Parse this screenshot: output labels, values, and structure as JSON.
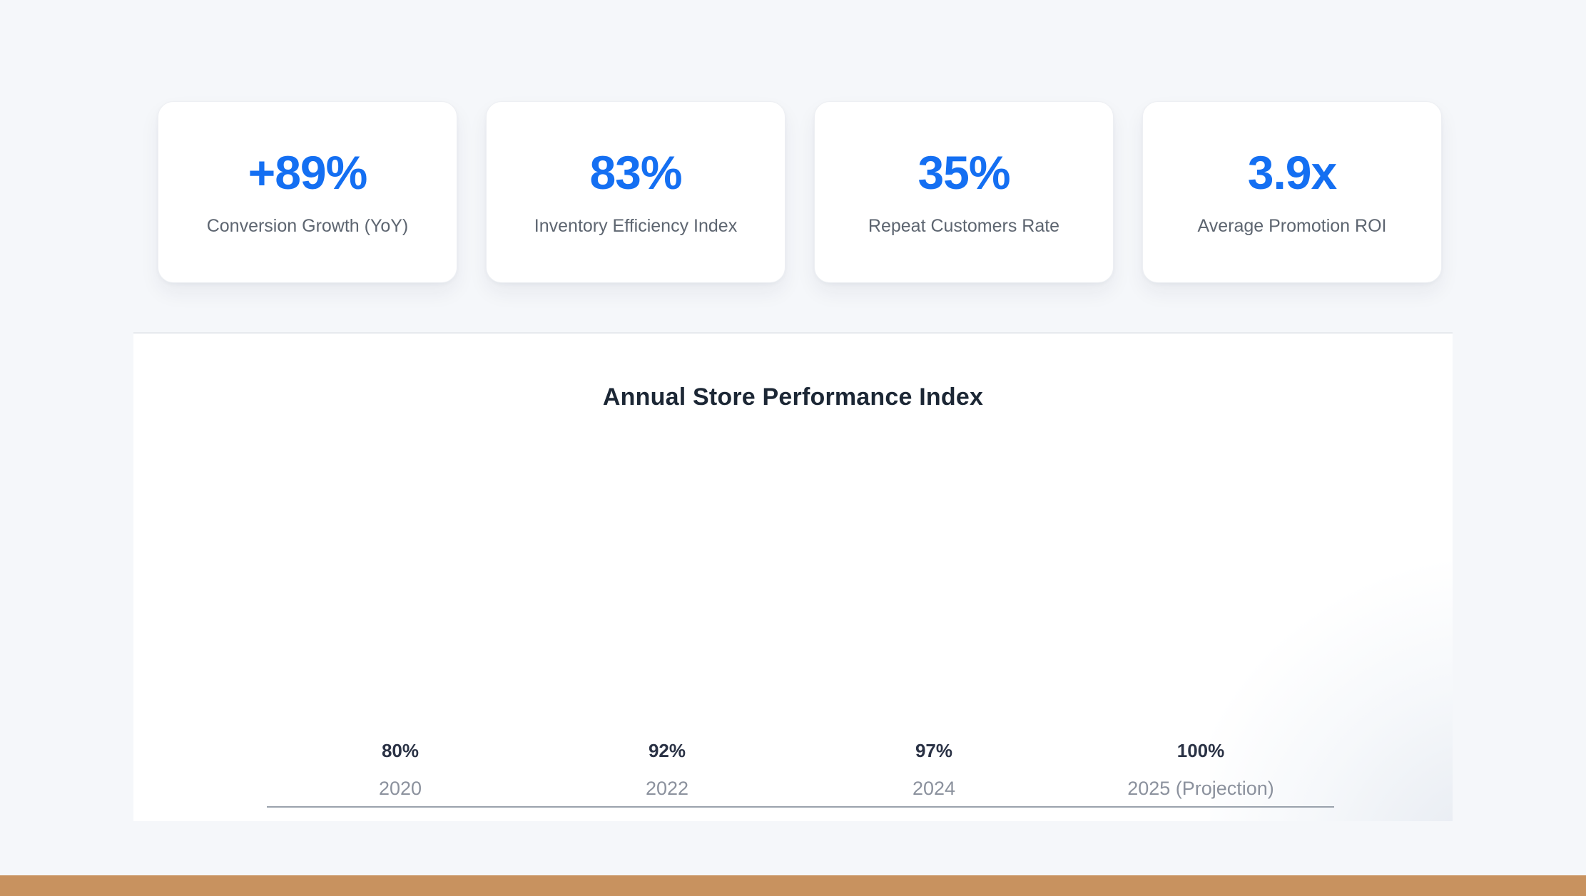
{
  "colors": {
    "page_background": "#f5f7fa",
    "accent_blue": "#146ff2",
    "title_navy": "#1c2735",
    "percent_label_navy": "#2a3245",
    "year_label_gray": "#8b919d",
    "axis_line_gray": "#9aa2ac",
    "bottom_bar_brown": "#c8925f"
  },
  "stats": {
    "cards": [
      {
        "value": "+89%",
        "label": "Conversion Growth (YoY)"
      },
      {
        "value": "83%",
        "label": "Inventory Efficiency Index"
      },
      {
        "value": "35%",
        "label": "Repeat Customers Rate"
      },
      {
        "value": "3.9x",
        "label": "Average Promotion ROI"
      }
    ]
  },
  "chart": {
    "title": "Annual Store Performance Index",
    "columns": [
      {
        "value": "80%",
        "year": "2020"
      },
      {
        "value": "92%",
        "year": "2022"
      },
      {
        "value": "97%",
        "year": "2024"
      },
      {
        "value": "100%",
        "year": "2025 (Projection)"
      }
    ]
  },
  "chart_data": {
    "type": "bar",
    "title": "Annual Store Performance Index",
    "categories": [
      "2020",
      "2022",
      "2024",
      "2025 (Projection)"
    ],
    "values": [
      80,
      92,
      97,
      100
    ],
    "unit": "%",
    "xlabel": "",
    "ylabel": "",
    "ylim": [
      0,
      100
    ],
    "grid": false,
    "legend": false,
    "notes": "Bars are not visibly rendered (zero height); value labels sit above year labels along the baseline axis."
  }
}
